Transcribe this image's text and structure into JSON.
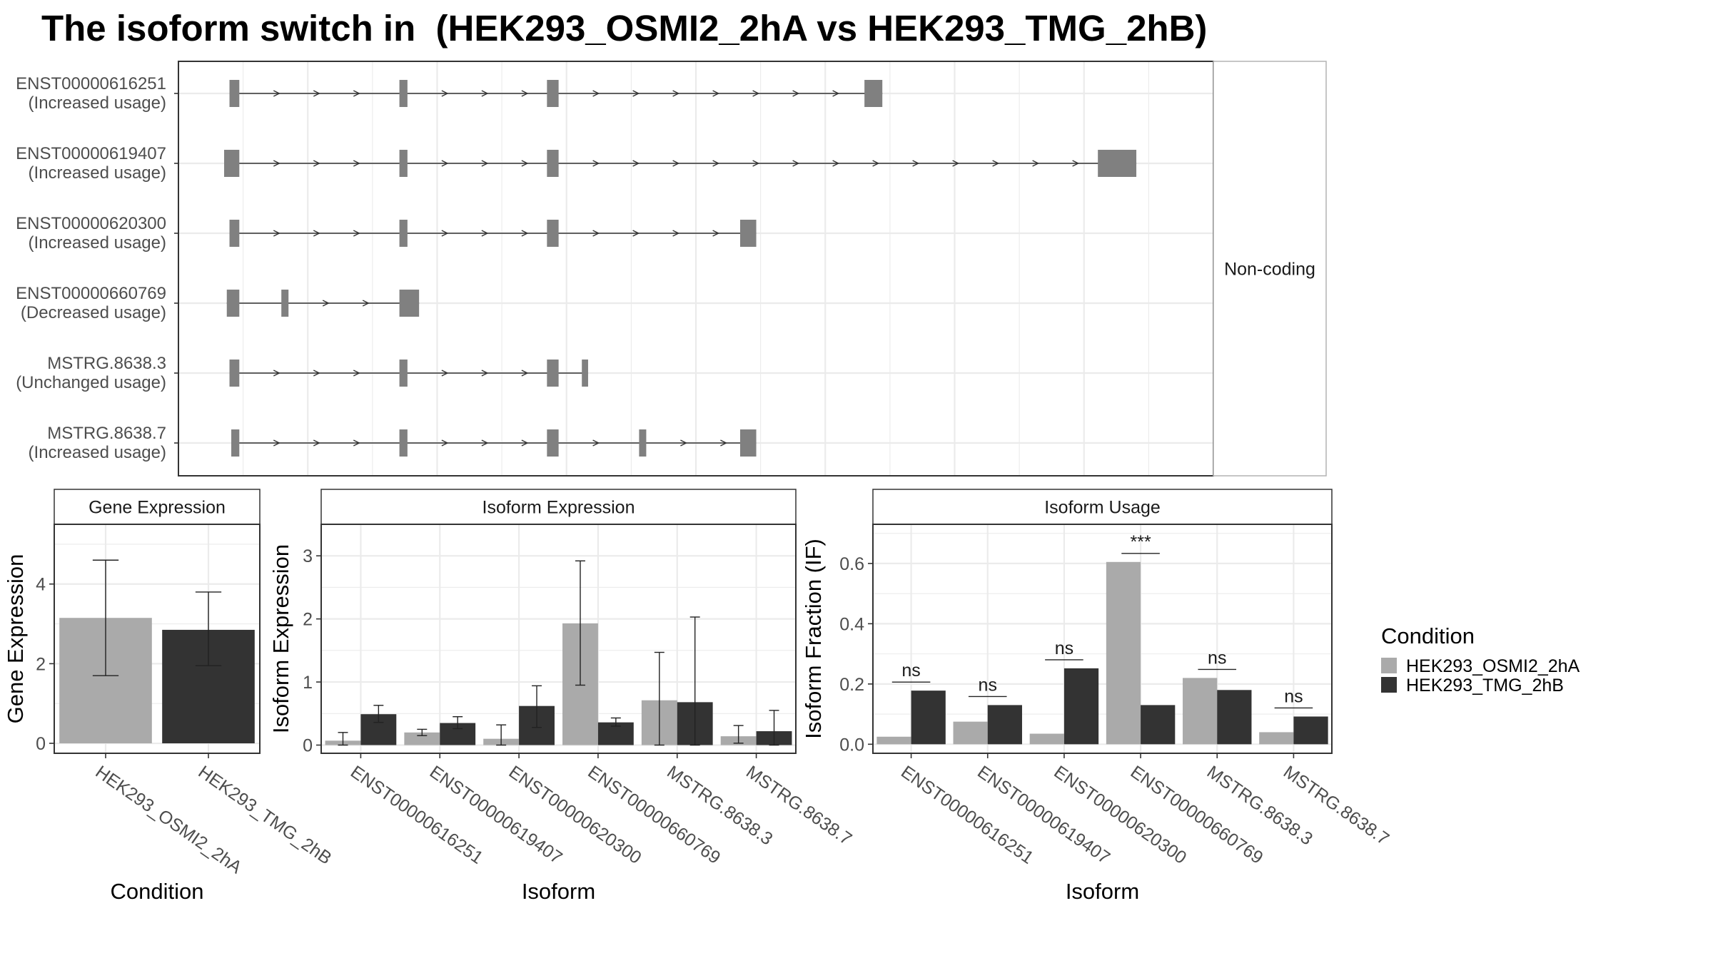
{
  "title": "The isoform switch in  (HEK293_OSMI2_2hA vs HEK293_TMG_2hB)",
  "colors": {
    "cond1": "#aaaaaa",
    "cond2": "#333333",
    "exon": "#808080",
    "grid": "#ebebeb",
    "border": "#333333"
  },
  "chart_data": [
    {
      "type": "gene-structure",
      "facet_label": "Non-coding",
      "x_range": [
        0,
        1000
      ],
      "transcripts": [
        {
          "id": "ENST00000616251",
          "usage": "(Increased usage)",
          "exons": [
            [
              6,
              17
            ],
            [
              196,
              205
            ],
            [
              361,
              374
            ],
            [
              716,
              736
            ]
          ]
        },
        {
          "id": "ENST00000619407",
          "usage": "(Increased usage)",
          "exons": [
            [
              0,
              17
            ],
            [
              196,
              205
            ],
            [
              361,
              374
            ],
            [
              977,
              1020
            ]
          ]
        },
        {
          "id": "ENST00000620300",
          "usage": "(Increased usage)",
          "exons": [
            [
              6,
              17
            ],
            [
              196,
              205
            ],
            [
              361,
              374
            ],
            [
              577,
              595
            ]
          ]
        },
        {
          "id": "ENST00000660769",
          "usage": "(Decreased usage)",
          "exons": [
            [
              3,
              17
            ],
            [
              64,
              72
            ],
            [
              196,
              218
            ]
          ]
        },
        {
          "id": "MSTRG.8638.3",
          "usage": "(Unchanged usage)",
          "exons": [
            [
              6,
              17
            ],
            [
              196,
              205
            ],
            [
              361,
              374
            ],
            [
              400,
              407
            ]
          ]
        },
        {
          "id": "MSTRG.8638.7",
          "usage": "(Increased usage)",
          "exons": [
            [
              8,
              17
            ],
            [
              196,
              205
            ],
            [
              361,
              374
            ],
            [
              464,
              472
            ],
            [
              577,
              595
            ]
          ]
        }
      ]
    },
    {
      "type": "bar",
      "title": "Gene Expression",
      "xlabel": "Condition",
      "ylabel": "Gene Expression",
      "ylim": [
        -0.25,
        5.5
      ],
      "yticks": [
        0,
        2,
        4
      ],
      "categories": [
        "HEK293_OSMI2_2hA",
        "HEK293_TMG_2hB"
      ],
      "values": [
        3.15,
        2.85
      ],
      "errors": [
        [
          1.7,
          4.6
        ],
        [
          1.95,
          3.8
        ]
      ]
    },
    {
      "type": "bar",
      "title": "Isoform Expression",
      "xlabel": "Isoform",
      "ylabel": "Isoform Expression",
      "ylim": [
        -0.13,
        3.5
      ],
      "yticks": [
        0,
        1,
        2,
        3
      ],
      "categories": [
        "ENST00000616251",
        "ENST00000619407",
        "ENST00000620300",
        "ENST00000660769",
        "MSTRG.8638.3",
        "MSTRG.8638.7"
      ],
      "series": [
        {
          "name": "HEK293_OSMI2_2hA",
          "values": [
            0.07,
            0.2,
            0.1,
            1.93,
            0.71,
            0.14
          ],
          "errors": [
            [
              0.0,
              0.2
            ],
            [
              0.15,
              0.25
            ],
            [
              0.0,
              0.32
            ],
            [
              0.95,
              2.92
            ],
            [
              0.0,
              1.47
            ],
            [
              0.03,
              0.31
            ]
          ]
        },
        {
          "name": "HEK293_TMG_2hB",
          "values": [
            0.49,
            0.35,
            0.62,
            0.36,
            0.68,
            0.22
          ],
          "errors": [
            [
              0.36,
              0.63
            ],
            [
              0.26,
              0.45
            ],
            [
              0.28,
              0.94
            ],
            [
              0.3,
              0.43
            ],
            [
              0.0,
              2.03
            ],
            [
              0.0,
              0.55
            ]
          ]
        }
      ]
    },
    {
      "type": "bar",
      "title": "Isoform Usage",
      "xlabel": "Isoform",
      "ylabel": "Isoform Fraction (IF)",
      "ylim": [
        -0.03,
        0.73
      ],
      "yticks": [
        0.0,
        0.2,
        0.4,
        0.6
      ],
      "ytick_labels": [
        "0.0",
        "0.2",
        "0.4",
        "0.6"
      ],
      "categories": [
        "ENST00000616251",
        "ENST00000619407",
        "ENST00000620300",
        "ENST00000660769",
        "MSTRG.8638.3",
        "MSTRG.8638.7"
      ],
      "series": [
        {
          "name": "HEK293_OSMI2_2hA",
          "values": [
            0.025,
            0.075,
            0.035,
            0.605,
            0.22,
            0.04
          ]
        },
        {
          "name": "HEK293_TMG_2hB",
          "values": [
            0.178,
            0.13,
            0.252,
            0.13,
            0.18,
            0.092
          ]
        }
      ],
      "annotations": [
        "ns",
        "ns",
        "ns",
        "***",
        "ns",
        "ns"
      ]
    }
  ],
  "legend": {
    "title": "Condition",
    "items": [
      "HEK293_OSMI2_2hA",
      "HEK293_TMG_2hB"
    ]
  }
}
